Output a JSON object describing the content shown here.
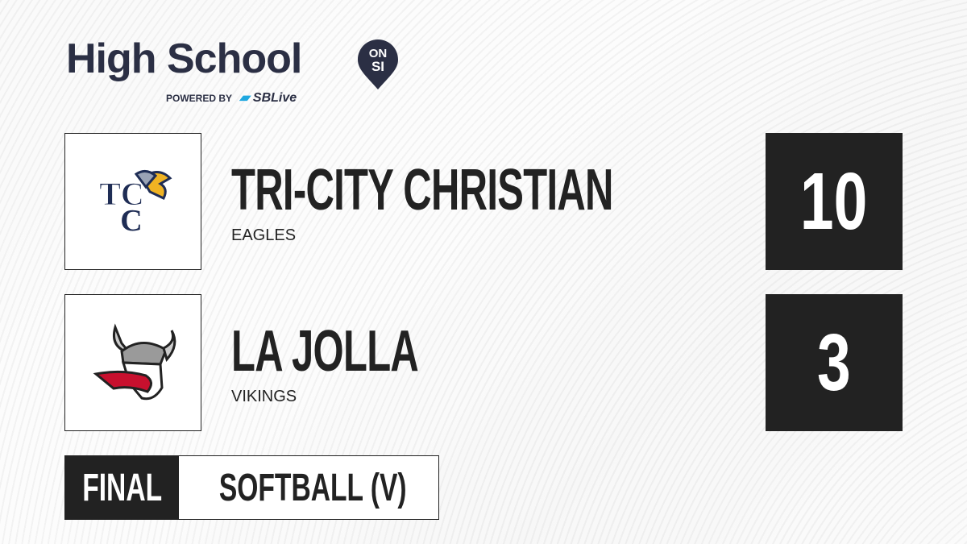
{
  "brand": {
    "title": "High School",
    "badge_top": "ON",
    "badge_bottom": "SI",
    "powered_by": "POWERED BY",
    "partner": "SBLive",
    "accent": "#1fa8e0",
    "primary": "#2b2f44"
  },
  "teams": [
    {
      "name": "TRI-CITY CHRISTIAN",
      "mascot": "EAGLES",
      "score": "10",
      "logo_text": "TCC",
      "logo": "eagle-logo"
    },
    {
      "name": "LA JOLLA",
      "mascot": "VIKINGS",
      "score": "3",
      "logo": "viking-logo"
    }
  ],
  "game": {
    "status": "FINAL",
    "sport": "SOFTBALL (V)"
  }
}
